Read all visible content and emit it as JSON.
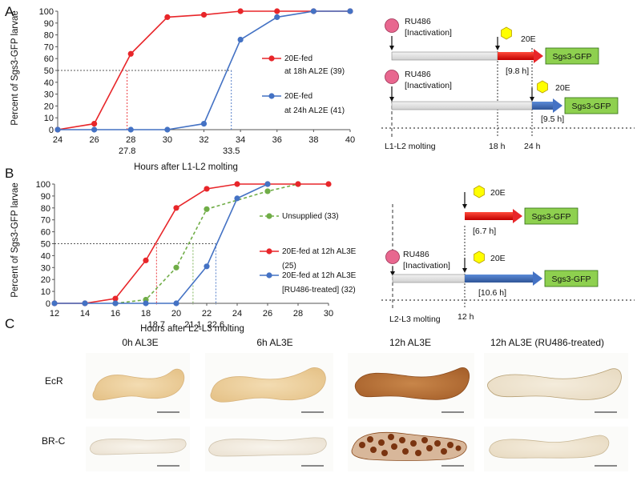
{
  "panels": {
    "a": "A",
    "b": "B",
    "c": "C"
  },
  "colors": {
    "red": "#e8262a",
    "blue": "#4472c4",
    "green": "#70ad47",
    "yellow": "#ffff00",
    "pink": "#e8678f",
    "box_green": "#8ed04f"
  },
  "chart_data": [
    {
      "type": "line",
      "ylabel": "Percent of Sgs3-GFP larvae",
      "xlabel": "Hours after L1-L2 molting",
      "x_ticks": [
        "24",
        "26",
        "28",
        "30",
        "32",
        "34",
        "36",
        "38",
        "40"
      ],
      "y_ticks": [
        "0",
        "10",
        "20",
        "30",
        "40",
        "50",
        "60",
        "70",
        "80",
        "90",
        "100"
      ],
      "xlim": [
        24,
        40
      ],
      "ylim": [
        0,
        100
      ],
      "series": [
        {
          "name": "20E-fed at 18h AL2E (39)",
          "legend_line1": "20E-fed",
          "legend_line2": "at 18h AL2E (39)",
          "color": "#e8262a",
          "style": "solid",
          "x": [
            24,
            26,
            28,
            30,
            32,
            34,
            36,
            38,
            40
          ],
          "y": [
            0,
            5,
            64,
            95,
            97,
            100,
            100,
            100,
            100
          ]
        },
        {
          "name": "20E-fed at 24h AL2E (41)",
          "legend_line1": "20E-fed",
          "legend_line2": "at 24h AL2E (41)",
          "color": "#4472c4",
          "style": "solid",
          "x": [
            24,
            26,
            28,
            30,
            32,
            34,
            36,
            38,
            40
          ],
          "y": [
            0,
            0,
            0,
            0,
            5,
            76,
            95,
            100,
            100
          ]
        }
      ],
      "half_markers": [
        {
          "x": 27.8,
          "label": "27.8",
          "color": "#e8262a"
        },
        {
          "x": 33.5,
          "label": "33.5",
          "color": "#4472c4"
        }
      ]
    },
    {
      "type": "line",
      "ylabel": "Percent of Sgs3-GFP larvae",
      "xlabel": "Hours after L2-L3 molting",
      "x_ticks": [
        "12",
        "14",
        "16",
        "18",
        "20",
        "22",
        "24",
        "26",
        "28",
        "30"
      ],
      "y_ticks": [
        "0",
        "10",
        "20",
        "30",
        "40",
        "50",
        "60",
        "70",
        "80",
        "90",
        "100"
      ],
      "xlim": [
        12,
        30
      ],
      "ylim": [
        0,
        100
      ],
      "series": [
        {
          "name": "Unsupplied (33)",
          "legend_line1": "Unsupplied (33)",
          "legend_line2": "",
          "color": "#70ad47",
          "style": "dashed",
          "x": [
            16,
            18,
            20,
            22,
            26,
            28
          ],
          "y": [
            0,
            3,
            30,
            79,
            94,
            100
          ]
        },
        {
          "name": "20E-fed at 12h AL3E (25)",
          "legend_line1": "20E-fed at 12h AL3E",
          "legend_line2": "(25)",
          "color": "#e8262a",
          "style": "solid",
          "x": [
            12,
            14,
            16,
            18,
            20,
            22,
            24,
            26,
            28,
            30
          ],
          "y": [
            0,
            0,
            4,
            36,
            80,
            96,
            100,
            100,
            100,
            100
          ]
        },
        {
          "name": "20E-fed at 12h AL3E [RU486-treated] (32)",
          "legend_line1": "20E-fed at 12h AL3E",
          "legend_line2": "[RU486-treated] (32)",
          "color": "#4472c4",
          "style": "solid",
          "x": [
            12,
            14,
            16,
            18,
            20,
            22,
            24,
            26
          ],
          "y": [
            0,
            0,
            0,
            0,
            0,
            31,
            88,
            100
          ]
        }
      ],
      "half_markers": [
        {
          "x": 18.7,
          "label": "18.7",
          "color": "#e8262a"
        },
        {
          "x": 21.1,
          "label": "21.1",
          "color": "#70ad47"
        },
        {
          "x": 22.6,
          "label": "22.6",
          "color": "#4472c4"
        }
      ]
    }
  ],
  "diagram_a": {
    "ru486_label_1": "RU486",
    "ru486_label_2": "[Inactivation]",
    "ru486_label_3": "RU486",
    "ru486_label_4": "[Inactivation]",
    "hormone_1": "20E",
    "hormone_2": "20E",
    "reporter_1": "Sgs3-GFP",
    "reporter_2": "Sgs3-GFP",
    "duration_1": "[9.8 h]",
    "duration_2": "[9.5 h]",
    "time_molting": "L1-L2 molting",
    "time_18": "18 h",
    "time_24": "24 h"
  },
  "diagram_b": {
    "hormone_1": "20E",
    "hormone_2": "20E",
    "reporter_1": "Sgs3-GFP",
    "reporter_2": "Sgs3-GFP",
    "duration_1": "[6.7 h]",
    "duration_2": "[10.6 h]",
    "ru486_label_1": "RU486",
    "ru486_label_2": "[Inactivation]",
    "time_molting": "L2-L3 molting",
    "time_12": "12 h"
  },
  "micrographs": {
    "col_titles": [
      "0h AL3E",
      "6h AL3E",
      "12h AL3E",
      "12h AL3E (RU486-treated)"
    ],
    "row_labels": [
      "EcR",
      "BR-C"
    ]
  }
}
